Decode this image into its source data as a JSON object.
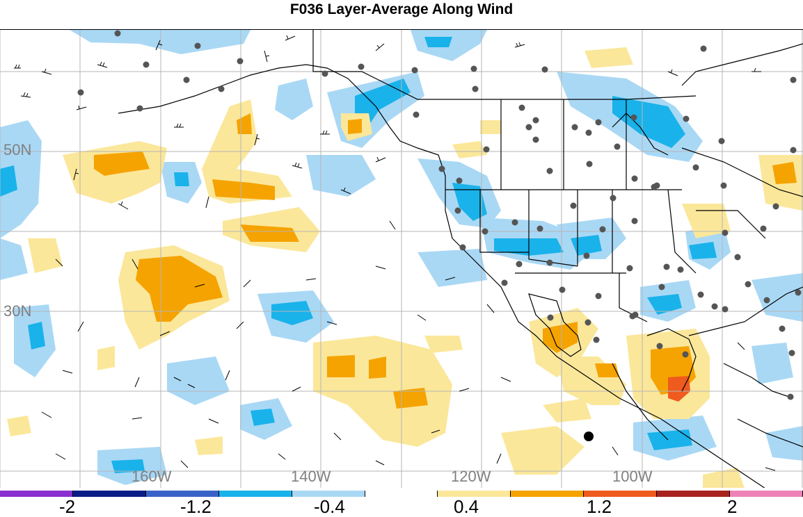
{
  "title": "F036 Layer-Average Along Wind",
  "map": {
    "lat_labels": [
      {
        "id": "lat-50n",
        "text": "50N"
      },
      {
        "id": "lat-30n",
        "text": "30N"
      }
    ],
    "lon_labels": [
      {
        "id": "lon-160w",
        "text": "160W"
      },
      {
        "id": "lon-140w",
        "text": "140W"
      },
      {
        "id": "lon-120w",
        "text": "120W"
      },
      {
        "id": "lon-100w",
        "text": "100W"
      }
    ]
  },
  "colors": {
    "light_blue": "#a9d8f5",
    "blue": "#1ab2ea",
    "yellow": "#fbe79a",
    "orange": "#f5a300",
    "red_orange": "#ef5a1e",
    "dark_red": "#a8221e",
    "pink": "#ee82b8",
    "mid_blue": "#3a63c9",
    "navy": "#0c1c86",
    "purple": "#8a2fd0",
    "land_line": "#000000",
    "grid_line": "#b5b5b5",
    "station": "#555555"
  },
  "colorbar": {
    "segments": [
      "#8a2fd0",
      "#0c1c86",
      "#3a63c9",
      "#1ab2ea",
      "#a9d8f5",
      "#ffffff",
      "#fbe79a",
      "#f5a300",
      "#ef5a1e",
      "#a8221e",
      "#ee82b8"
    ],
    "ticks": [
      "-2",
      "-1.2",
      "-0.4",
      "0.4",
      "1.2",
      "2"
    ]
  }
}
